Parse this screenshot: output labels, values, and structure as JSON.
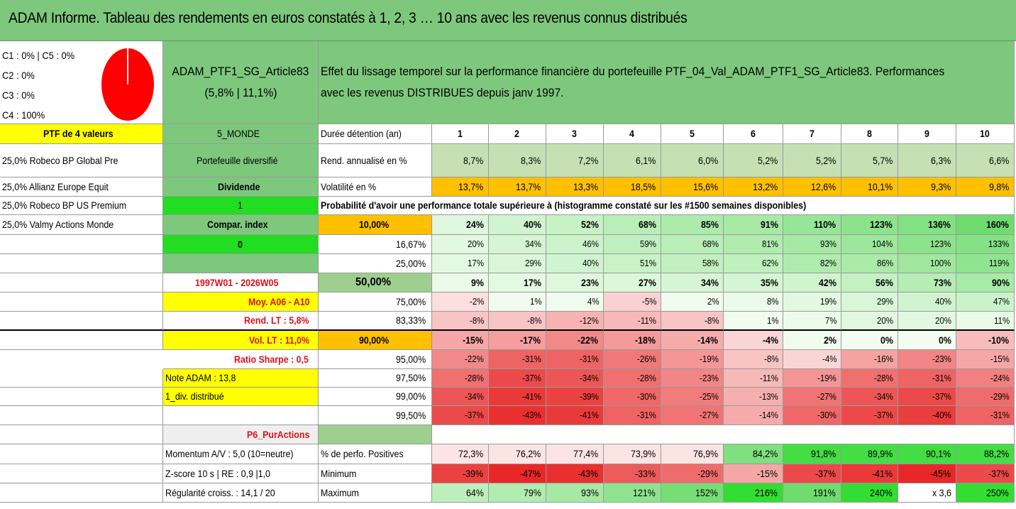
{
  "title": "ADAM Informe. Tableau des rendements en euros constatés à 1, 2, 3 … 10 ans avec les revenus connus distribués",
  "alloc": [
    "C1 : 0% | C5 : 0%",
    "C2 : 0%",
    "C3 : 0%",
    "C4 : 100%"
  ],
  "portfolio": {
    "name": "ADAM_PTF1_SG_Article83",
    "perf": "(5,8% | 11,1%)",
    "description_line1": "Effet du lissage temporel sur la performance financière du portefeuille PTF_04_Val_ADAM_PTF1_SG_Article83. Performances",
    "description_line2": "avec les revenus DISTRIBUES depuis janv 1997."
  },
  "left": {
    "ptf_label": "PTF de 4 valeurs",
    "holdings": [
      "25,0% Robeco BP Global Pre",
      "25,0% Allianz Europe Equit",
      "25,0% Robeco BP US Premium",
      "25,0% Valmy Actions Monde"
    ]
  },
  "mid": {
    "zone": "5_MONDE",
    "type": "Portefeuille diversifié",
    "dividende_label": "Dividende",
    "dividende_value": "1",
    "compar_label": "Compar. index",
    "compar_value": "0",
    "period": "1997W01 - 2026W05",
    "moy": "Moy. A06 - A10",
    "rend_lt": "Rend. LT : 5,8%",
    "vol_lt": "Vol. LT : 11,0%",
    "sharpe": "Ratio Sharpe : 0,5",
    "note": "Note ADAM : 13,8",
    "div": "1_div. distribué",
    "pur": "P6_PurActions",
    "momentum": "Momentum A/V : 5,0 (10=neutre)",
    "zscore": "Z-score 10 s | RE : 0,9 |1,0",
    "regularite": "Régularité croiss. : 14,1 / 20"
  },
  "header": {
    "duree_label": "Durée détention (an)",
    "years": [
      "1",
      "2",
      "3",
      "4",
      "5",
      "6",
      "7",
      "8",
      "9",
      "10"
    ],
    "rend_label": "Rend. annualisé en %",
    "rend": [
      "8,7%",
      "8,3%",
      "7,2%",
      "6,1%",
      "6,0%",
      "5,2%",
      "5,2%",
      "5,7%",
      "6,3%",
      "6,6%"
    ],
    "vol_label": "Volatilité en %",
    "vol": [
      "13,7%",
      "13,7%",
      "13,3%",
      "18,5%",
      "15,6%",
      "13,2%",
      "12,6%",
      "10,1%",
      "9,3%",
      "9,8%"
    ],
    "proba_text": "Probabilité d'avoir une performance totale supérieure à (histogramme constaté sur les #1500 semaines disponibles)"
  },
  "quantiles": [
    {
      "label": "10,00%",
      "values": [
        "24%",
        "40%",
        "52%",
        "68%",
        "85%",
        "91%",
        "110%",
        "123%",
        "136%",
        "160%"
      ]
    },
    {
      "label": "16,67%",
      "values": [
        "20%",
        "34%",
        "46%",
        "59%",
        "68%",
        "81%",
        "93%",
        "104%",
        "123%",
        "133%"
      ]
    },
    {
      "label": "25,00%",
      "values": [
        "17%",
        "29%",
        "40%",
        "51%",
        "58%",
        "62%",
        "82%",
        "86%",
        "100%",
        "119%"
      ]
    },
    {
      "label": "50,00%",
      "values": [
        "9%",
        "17%",
        "23%",
        "27%",
        "34%",
        "35%",
        "42%",
        "56%",
        "73%",
        "90%"
      ]
    },
    {
      "label": "75,00%",
      "values": [
        "-2%",
        "1%",
        "4%",
        "-5%",
        "2%",
        "8%",
        "19%",
        "29%",
        "40%",
        "47%"
      ]
    },
    {
      "label": "83,33%",
      "values": [
        "-8%",
        "-8%",
        "-12%",
        "-11%",
        "-8%",
        "1%",
        "7%",
        "20%",
        "20%",
        "11%"
      ]
    },
    {
      "label": "90,00%",
      "values": [
        "-15%",
        "-17%",
        "-22%",
        "-18%",
        "-14%",
        "-4%",
        "2%",
        "0%",
        "0%",
        "-10%"
      ]
    },
    {
      "label": "95,00%",
      "values": [
        "-22%",
        "-31%",
        "-31%",
        "-26%",
        "-19%",
        "-8%",
        "-4%",
        "-16%",
        "-23%",
        "-15%"
      ]
    },
    {
      "label": "97,50%",
      "values": [
        "-28%",
        "-37%",
        "-34%",
        "-28%",
        "-23%",
        "-11%",
        "-19%",
        "-28%",
        "-31%",
        "-24%"
      ]
    },
    {
      "label": "99,00%",
      "values": [
        "-34%",
        "-41%",
        "-39%",
        "-30%",
        "-25%",
        "-13%",
        "-27%",
        "-34%",
        "-37%",
        "-29%"
      ]
    },
    {
      "label": "99,50%",
      "values": [
        "-37%",
        "-43%",
        "-41%",
        "-31%",
        "-27%",
        "-14%",
        "-30%",
        "-37%",
        "-40%",
        "-31%"
      ]
    }
  ],
  "bottom": {
    "pos_label": "% de perfo. Positives",
    "pos": [
      "72,3%",
      "76,2%",
      "77,4%",
      "73,9%",
      "76,9%",
      "84,2%",
      "91,8%",
      "89,9%",
      "90,1%",
      "88,2%"
    ],
    "min_label": "Minimum",
    "min": [
      "-39%",
      "-47%",
      "-43%",
      "-33%",
      "-29%",
      "-15%",
      "-37%",
      "-41%",
      "-45%",
      "-37%"
    ],
    "max_label": "Maximum",
    "max": [
      "64%",
      "79%",
      "93%",
      "121%",
      "152%",
      "216%",
      "191%",
      "240%",
      "x 3,6",
      "250%"
    ]
  },
  "colors": {
    "header_green": "#7ec87e",
    "yellow": "#ffff00",
    "orange": "#ffc000",
    "bright_green": "#22dd22",
    "pie_red": "#ff0000"
  }
}
